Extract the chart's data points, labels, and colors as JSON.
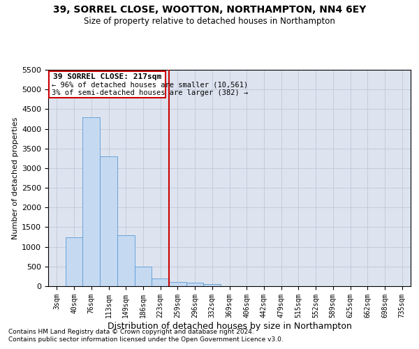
{
  "title1": "39, SORREL CLOSE, WOOTTON, NORTHAMPTON, NN4 6EY",
  "title2": "Size of property relative to detached houses in Northampton",
  "xlabel": "Distribution of detached houses by size in Northampton",
  "ylabel": "Number of detached properties",
  "footer1": "Contains HM Land Registry data © Crown copyright and database right 2024.",
  "footer2": "Contains public sector information licensed under the Open Government Licence v3.0.",
  "annotation_line1": "39 SORREL CLOSE: 217sqm",
  "annotation_line2": "← 96% of detached houses are smaller (10,561)",
  "annotation_line3": "3% of semi-detached houses are larger (382) →",
  "bar_categories": [
    "3sqm",
    "40sqm",
    "76sqm",
    "113sqm",
    "149sqm",
    "186sqm",
    "223sqm",
    "259sqm",
    "296sqm",
    "332sqm",
    "369sqm",
    "406sqm",
    "442sqm",
    "479sqm",
    "515sqm",
    "552sqm",
    "589sqm",
    "625sqm",
    "662sqm",
    "698sqm",
    "735sqm"
  ],
  "bar_values": [
    0,
    1250,
    4300,
    3300,
    1300,
    500,
    200,
    100,
    80,
    50,
    0,
    0,
    0,
    0,
    0,
    0,
    0,
    0,
    0,
    0,
    0
  ],
  "bar_color": "#c5d9f1",
  "bar_edge_color": "#5b9bd5",
  "vline_color": "#cc0000",
  "vline_x": 6.5,
  "annotation_box_color": "#cc0000",
  "grid_color": "#c0c8d8",
  "background_color": "#dde4f0",
  "ylim": [
    0,
    5500
  ],
  "yticks": [
    0,
    500,
    1000,
    1500,
    2000,
    2500,
    3000,
    3500,
    4000,
    4500,
    5000,
    5500
  ]
}
